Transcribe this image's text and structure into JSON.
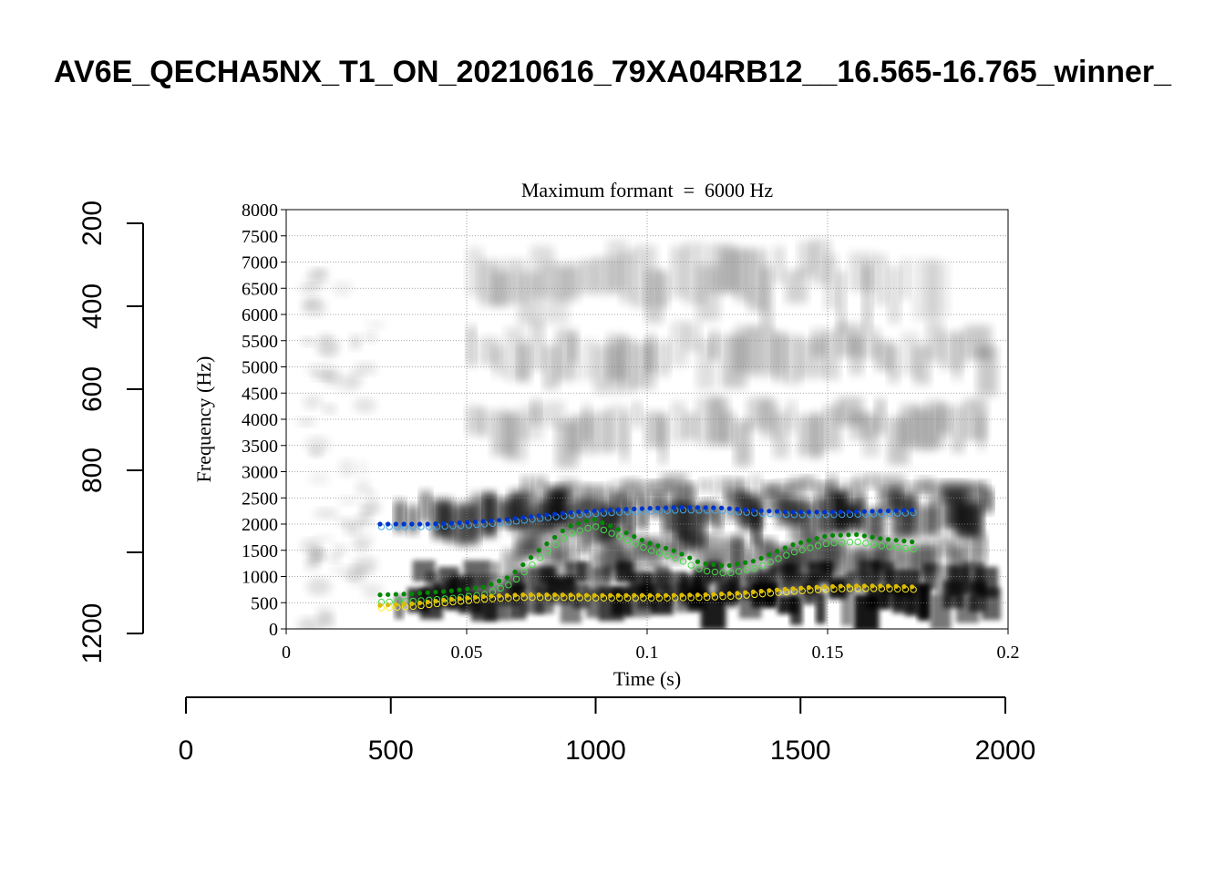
{
  "page_title": "AV6E_QECHA5NX_T1_ON_20210616_79XA04RB12__16.565-16.765_winner_",
  "chart_data": {
    "type": "scatter",
    "title": "Maximum formant  =  6000 Hz",
    "xlabel": "Time (s)",
    "ylabel": "Frequency (Hz)",
    "xlim": [
      0,
      0.2
    ],
    "ylim": [
      0,
      8000
    ],
    "x_ticks": [
      "0",
      "0.05",
      "0.1",
      "0.15",
      "0.2"
    ],
    "y_ticks": [
      "0",
      "500",
      "1000",
      "1500",
      "2000",
      "2500",
      "3000",
      "3500",
      "4000",
      "4500",
      "5000",
      "5500",
      "6000",
      "6500",
      "7000",
      "7500",
      "8000"
    ],
    "grid": true,
    "background": "grayscale spectrogram",
    "outer_bottom_axis": {
      "ticks": [
        "0",
        "500",
        "1000",
        "1500",
        "2000"
      ],
      "range": [
        0,
        2000
      ]
    },
    "outer_left_axis": {
      "ticks": [
        "200",
        "400",
        "600",
        "800",
        "1200"
      ],
      "range": [
        200,
        1200
      ]
    },
    "series": [
      {
        "color": "#0033cc",
        "open_color": "#44aaee",
        "x": [
          0.026,
          0.04,
          0.05,
          0.06,
          0.07,
          0.08,
          0.09,
          0.1,
          0.11,
          0.12,
          0.13,
          0.14,
          0.15,
          0.16,
          0.175
        ],
        "values": [
          2000,
          2000,
          2030,
          2080,
          2160,
          2230,
          2270,
          2300,
          2320,
          2310,
          2260,
          2230,
          2230,
          2240,
          2270
        ]
      },
      {
        "color": "#008800",
        "open_color": "#44dd44",
        "x": [
          0.026,
          0.035,
          0.045,
          0.055,
          0.062,
          0.07,
          0.078,
          0.085,
          0.092,
          0.1,
          0.108,
          0.115,
          0.122,
          0.13,
          0.14,
          0.15,
          0.158,
          0.165,
          0.175
        ],
        "values": [
          650,
          670,
          720,
          800,
          1000,
          1500,
          1950,
          2100,
          1900,
          1650,
          1480,
          1250,
          1200,
          1300,
          1600,
          1780,
          1800,
          1720,
          1650
        ]
      },
      {
        "color": "#ddbb00",
        "open_color": "#ffee22",
        "x": [
          0.026,
          0.035,
          0.045,
          0.055,
          0.065,
          0.075,
          0.085,
          0.095,
          0.105,
          0.115,
          0.125,
          0.135,
          0.145,
          0.155,
          0.165,
          0.175
        ],
        "values": [
          450,
          480,
          560,
          620,
          650,
          650,
          640,
          640,
          640,
          650,
          680,
          740,
          790,
          820,
          820,
          800
        ]
      }
    ]
  }
}
